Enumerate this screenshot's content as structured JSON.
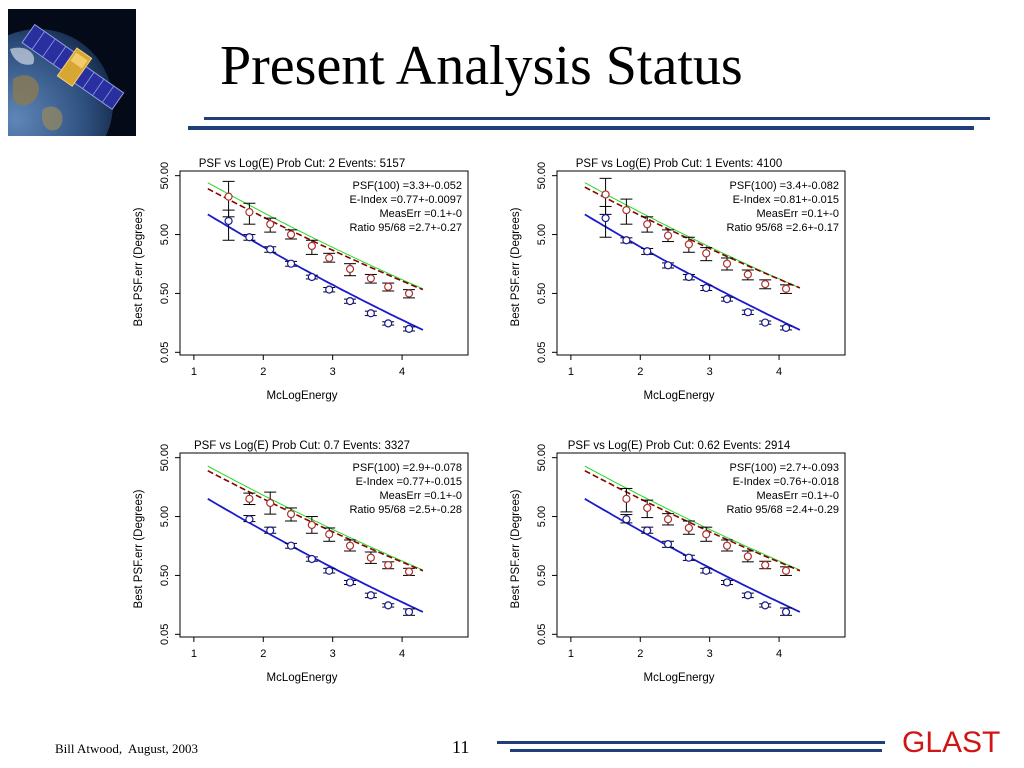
{
  "slide": {
    "title": "Present Analysis Status",
    "footer_author": "Bill Atwood,  August, 2003",
    "page_number": "11",
    "brand": "GLAST",
    "logo_icon": "satellite-earth-icon"
  },
  "colors": {
    "rule": "#1f3f7a",
    "brand": "#d01515",
    "fit_blue": "#1a1acc",
    "fit_red": "#8b0000",
    "fit_green": "#22dd22",
    "points_red": "#b03030",
    "points_blue": "#1a1a99"
  },
  "chart_data": [
    {
      "type": "scatter",
      "title": "PSF vs Log(E)   Prob Cut: 2  Events: 5157",
      "xlabel": "McLogEnergy",
      "ylabel": "Best PSF.err (Degrees)",
      "x_ticks": [
        "1",
        "2",
        "3",
        "4"
      ],
      "y_ticks": [
        "0.05",
        "0.50",
        "5.00",
        "50.00"
      ],
      "xlim": [
        0.8,
        4.95
      ],
      "ylim": [
        0.045,
        60
      ],
      "y_scale": "log",
      "annotations": [
        "PSF(100) =3.3+-0.052",
        "E-Index =0.77+-0.0097",
        "MeasErr =0.1+-0",
        "Ratio 95/68 =2.7+-0.27"
      ],
      "series": [
        {
          "color": "red",
          "x": [
            1.5,
            1.8,
            2.1,
            2.4,
            2.7,
            2.95,
            3.25,
            3.55,
            3.8,
            4.1
          ],
          "y": [
            22,
            12,
            7.5,
            5.0,
            3.2,
            2.0,
            1.3,
            0.9,
            0.65,
            0.5
          ],
          "err": [
            [
              10,
              40
            ],
            [
              7.5,
              17
            ],
            [
              5.5,
              9.5
            ],
            [
              4.2,
              6.0
            ],
            [
              2.3,
              4.0
            ],
            [
              1.7,
              2.4
            ],
            [
              1.0,
              1.6
            ],
            [
              0.75,
              1.05
            ],
            [
              0.55,
              0.75
            ],
            [
              0.42,
              0.58
            ]
          ]
        },
        {
          "color": "blue",
          "x": [
            1.5,
            1.8,
            2.1,
            2.4,
            2.7,
            2.95,
            3.25,
            3.55,
            3.8,
            4.1
          ],
          "y": [
            8.5,
            4.5,
            2.8,
            1.6,
            0.95,
            0.58,
            0.37,
            0.23,
            0.155,
            0.125
          ],
          "err": [
            [
              4,
              13
            ],
            [
              4.0,
              5.0
            ],
            [
              2.5,
              3.1
            ],
            [
              1.45,
              1.75
            ],
            [
              0.88,
              1.02
            ],
            [
              0.53,
              0.63
            ],
            [
              0.34,
              0.4
            ],
            [
              0.21,
              0.25
            ],
            [
              0.145,
              0.165
            ],
            [
              0.115,
              0.135
            ]
          ]
        }
      ],
      "fits": {
        "x_range": [
          1.2,
          4.3
        ],
        "blue": [
          11,
          0.12
        ],
        "red": [
          30,
          0.58
        ],
        "green": [
          38,
          0.6
        ]
      }
    },
    {
      "type": "scatter",
      "title": "PSF vs Log(E)   Prob Cut: 1  Events: 4100",
      "xlabel": "McLogEnergy",
      "ylabel": "Best PSF.err (Degrees)",
      "x_ticks": [
        "1",
        "2",
        "3",
        "4"
      ],
      "y_ticks": [
        "0.05",
        "0.50",
        "5.00",
        "50.00"
      ],
      "xlim": [
        0.8,
        4.95
      ],
      "ylim": [
        0.045,
        60
      ],
      "y_scale": "log",
      "annotations": [
        "PSF(100) =3.4+-0.082",
        "E-Index =0.81+-0.015",
        "MeasErr =0.1+-0",
        "Ratio 95/68 =2.6+-0.17"
      ],
      "series": [
        {
          "color": "red",
          "x": [
            1.5,
            1.8,
            2.1,
            2.4,
            2.7,
            2.95,
            3.25,
            3.55,
            3.8,
            4.1
          ],
          "y": [
            24,
            13,
            7.5,
            4.8,
            3.4,
            2.4,
            1.6,
            1.05,
            0.72,
            0.6
          ],
          "err": [
            [
              11,
              45
            ],
            [
              7.5,
              20
            ],
            [
              5.5,
              10
            ],
            [
              3.8,
              6
            ],
            [
              2.5,
              4.5
            ],
            [
              1.8,
              3.0
            ],
            [
              1.25,
              2.0
            ],
            [
              0.85,
              1.25
            ],
            [
              0.6,
              0.85
            ],
            [
              0.5,
              0.7
            ]
          ]
        },
        {
          "color": "blue",
          "x": [
            1.5,
            1.8,
            2.1,
            2.4,
            2.7,
            2.95,
            3.25,
            3.55,
            3.8,
            4.1
          ],
          "y": [
            9.5,
            4.0,
            2.6,
            1.5,
            0.95,
            0.62,
            0.4,
            0.24,
            0.16,
            0.13
          ],
          "err": [
            [
              4.5,
              15
            ],
            [
              3.6,
              4.4
            ],
            [
              2.3,
              2.9
            ],
            [
              1.35,
              1.65
            ],
            [
              0.85,
              1.05
            ],
            [
              0.56,
              0.68
            ],
            [
              0.37,
              0.43
            ],
            [
              0.22,
              0.26
            ],
            [
              0.15,
              0.17
            ],
            [
              0.12,
              0.14
            ]
          ]
        }
      ],
      "fits": {
        "x_range": [
          1.2,
          4.3
        ],
        "blue": [
          11,
          0.12
        ],
        "red": [
          32,
          0.62
        ],
        "green": [
          38,
          0.62
        ]
      }
    },
    {
      "type": "scatter",
      "title": "PSF vs Log(E)   Prob Cut: 0.7  Events: 3327",
      "xlabel": "McLogEnergy",
      "ylabel": "Best PSF.err (Degrees)",
      "x_ticks": [
        "1",
        "2",
        "3",
        "4"
      ],
      "y_ticks": [
        "0.05",
        "0.50",
        "5.00",
        "50.00"
      ],
      "xlim": [
        0.8,
        4.95
      ],
      "ylim": [
        0.045,
        60
      ],
      "y_scale": "log",
      "annotations": [
        "PSF(100) =2.9+-0.078",
        "E-Index =0.77+-0.015",
        "MeasErr =0.1+-0",
        "Ratio 95/68 =2.5+-0.28"
      ],
      "series": [
        {
          "color": "red",
          "x": [
            1.8,
            2.1,
            2.4,
            2.7,
            2.95,
            3.25,
            3.55,
            3.8,
            4.1
          ],
          "y": [
            10,
            8.5,
            5.5,
            3.6,
            2.5,
            1.6,
            1.0,
            0.75,
            0.58
          ],
          "err": [
            [
              8,
              12.5
            ],
            [
              5.5,
              13
            ],
            [
              4.2,
              7.0
            ],
            [
              2.6,
              5.0
            ],
            [
              1.9,
              3.2
            ],
            [
              1.3,
              2.0
            ],
            [
              0.8,
              1.25
            ],
            [
              0.65,
              0.85
            ],
            [
              0.5,
              0.66
            ]
          ]
        },
        {
          "color": "blue",
          "x": [
            1.8,
            2.1,
            2.4,
            2.7,
            2.95,
            3.25,
            3.55,
            3.8,
            4.1
          ],
          "y": [
            4.5,
            2.9,
            1.6,
            0.95,
            0.6,
            0.38,
            0.23,
            0.155,
            0.12
          ],
          "err": [
            [
              4.1,
              5.2
            ],
            [
              2.6,
              3.3
            ],
            [
              1.45,
              1.75
            ],
            [
              0.87,
              1.03
            ],
            [
              0.55,
              0.66
            ],
            [
              0.35,
              0.41
            ],
            [
              0.21,
              0.25
            ],
            [
              0.145,
              0.165
            ],
            [
              0.105,
              0.135
            ]
          ]
        }
      ],
      "fits": {
        "x_range": [
          1.2,
          4.3
        ],
        "blue": [
          10,
          0.12
        ],
        "red": [
          30,
          0.6
        ],
        "green": [
          36,
          0.62
        ]
      }
    },
    {
      "type": "scatter",
      "title": "PSF vs Log(E)   Prob Cut: 0.62  Events: 2914",
      "xlabel": "McLogEnergy",
      "ylabel": "Best PSF.err (Degrees)",
      "x_ticks": [
        "1",
        "2",
        "3",
        "4"
      ],
      "y_ticks": [
        "0.05",
        "0.50",
        "5.00",
        "50.00"
      ],
      "xlim": [
        0.8,
        4.95
      ],
      "ylim": [
        0.045,
        60
      ],
      "y_scale": "log",
      "annotations": [
        "PSF(100) =2.7+-0.093",
        "E-Index =0.76+-0.018",
        "MeasErr =0.1+-0",
        "Ratio 95/68 =2.4+-0.29"
      ],
      "series": [
        {
          "color": "red",
          "x": [
            1.8,
            2.1,
            2.4,
            2.7,
            2.95,
            3.25,
            3.55,
            3.8,
            4.1
          ],
          "y": [
            10,
            7.0,
            4.5,
            3.2,
            2.5,
            1.6,
            1.05,
            0.75,
            0.6
          ],
          "err": [
            [
              6,
              15
            ],
            [
              4.8,
              9.5
            ],
            [
              3.6,
              5.6
            ],
            [
              2.5,
              4.2
            ],
            [
              1.9,
              3.3
            ],
            [
              1.3,
              2.0
            ],
            [
              0.85,
              1.3
            ],
            [
              0.65,
              0.87
            ],
            [
              0.5,
              0.7
            ]
          ]
        },
        {
          "color": "blue",
          "x": [
            1.8,
            2.1,
            2.4,
            2.7,
            2.95,
            3.25,
            3.55,
            3.8,
            4.1
          ],
          "y": [
            4.5,
            2.9,
            1.7,
            1.0,
            0.6,
            0.38,
            0.23,
            0.155,
            0.12
          ],
          "err": [
            [
              3.9,
              5.4
            ],
            [
              2.6,
              3.3
            ],
            [
              1.5,
              1.9
            ],
            [
              0.9,
              1.1
            ],
            [
              0.55,
              0.66
            ],
            [
              0.35,
              0.41
            ],
            [
              0.21,
              0.25
            ],
            [
              0.145,
              0.165
            ],
            [
              0.105,
              0.14
            ]
          ]
        }
      ],
      "fits": {
        "x_range": [
          1.2,
          4.3
        ],
        "blue": [
          10,
          0.12
        ],
        "red": [
          30,
          0.6
        ],
        "green": [
          36,
          0.62
        ]
      }
    }
  ]
}
